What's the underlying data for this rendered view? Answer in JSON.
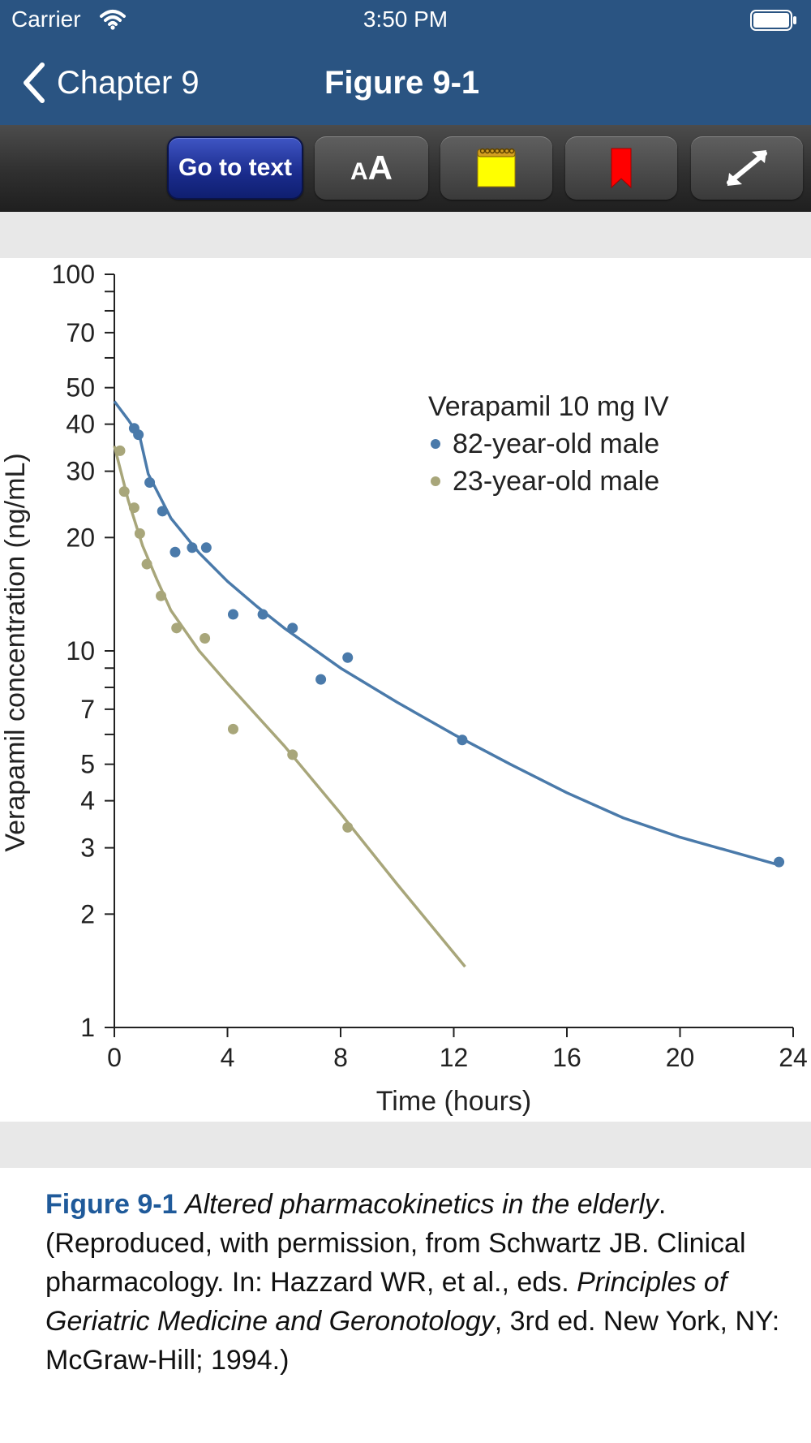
{
  "status_bar": {
    "carrier": "Carrier",
    "time": "3:50 PM"
  },
  "nav": {
    "back_label": "Chapter 9",
    "title": "Figure 9-1"
  },
  "toolbar": {
    "go_to_text": "Go to text",
    "font_small": "A",
    "font_large": "A",
    "icons": [
      "font-size-icon",
      "notepad-icon",
      "bookmark-icon",
      "expand-icon"
    ],
    "colors": {
      "go_to_text_bg": "#1a2b8c",
      "notepad": "#ffff00",
      "bookmark": "#ff0000"
    }
  },
  "chart_data": {
    "type": "scatter",
    "title": "",
    "legend_title": "Verapamil 10 mg IV",
    "legend_placement": "top-right",
    "xlabel": "Time (hours)",
    "ylabel": "Verapamil concentration (ng/mL)",
    "xlim": [
      0,
      24
    ],
    "ylim": [
      1,
      100
    ],
    "yscale": "log",
    "xticks": [
      "0",
      "4",
      "8",
      "12",
      "16",
      "20",
      "24"
    ],
    "yticks": [
      "1",
      "2",
      "3",
      "4",
      "5",
      "7",
      "10",
      "20",
      "30",
      "40",
      "50",
      "70",
      "100"
    ],
    "series": [
      {
        "name": "82-year-old male",
        "color": "#4a7aaa",
        "points": [
          [
            0.7,
            39
          ],
          [
            0.85,
            37.5
          ],
          [
            1.25,
            28
          ],
          [
            1.7,
            23.5
          ],
          [
            2.15,
            18.3
          ],
          [
            2.75,
            18.8
          ],
          [
            3.25,
            18.8
          ],
          [
            4.2,
            12.5
          ],
          [
            5.25,
            12.5
          ],
          [
            6.3,
            11.5
          ],
          [
            7.3,
            8.4
          ],
          [
            8.25,
            9.6
          ],
          [
            12.3,
            5.8
          ],
          [
            23.5,
            2.75
          ]
        ],
        "fit": [
          [
            0,
            46
          ],
          [
            0.5,
            41
          ],
          [
            0.9,
            37
          ],
          [
            1.2,
            29.5
          ],
          [
            2,
            22.5
          ],
          [
            3,
            18.2
          ],
          [
            4,
            15.3
          ],
          [
            5,
            13.2
          ],
          [
            6,
            11.5
          ],
          [
            8,
            9.0
          ],
          [
            10,
            7.3
          ],
          [
            12,
            6.0
          ],
          [
            14,
            5.0
          ],
          [
            16,
            4.2
          ],
          [
            18,
            3.6
          ],
          [
            20,
            3.2
          ],
          [
            23.5,
            2.7
          ]
        ]
      },
      {
        "name": "23-year-old male",
        "color": "#a8a67a",
        "points": [
          [
            0.2,
            34
          ],
          [
            0.35,
            26.5
          ],
          [
            0.7,
            24
          ],
          [
            0.9,
            20.5
          ],
          [
            1.15,
            17
          ],
          [
            1.65,
            14
          ],
          [
            2.2,
            11.5
          ],
          [
            3.2,
            10.8
          ],
          [
            4.2,
            6.2
          ],
          [
            6.3,
            5.3
          ],
          [
            8.25,
            3.4
          ]
        ],
        "fit": [
          [
            0,
            35
          ],
          [
            0.5,
            25
          ],
          [
            1,
            19
          ],
          [
            1.5,
            15.5
          ],
          [
            2,
            12.8
          ],
          [
            3,
            10.0
          ],
          [
            4,
            8.2
          ],
          [
            6,
            5.6
          ],
          [
            8,
            3.7
          ],
          [
            10,
            2.4
          ],
          [
            12.4,
            1.45
          ]
        ]
      }
    ]
  },
  "caption": {
    "label": "Figure 9-1",
    "title": "Altered pharmacokinetics in the elderly",
    "title_end": ".",
    "text1": "(Reproduced, with permission, from Schwartz JB. Clinical pharmacology. In: Hazzard WR, et al., eds.",
    "book": "Principles of Geriatric Medicine and Geronotology",
    "text2": ", 3rd ed. New York, NY: McGraw-Hill; 1994.)"
  }
}
